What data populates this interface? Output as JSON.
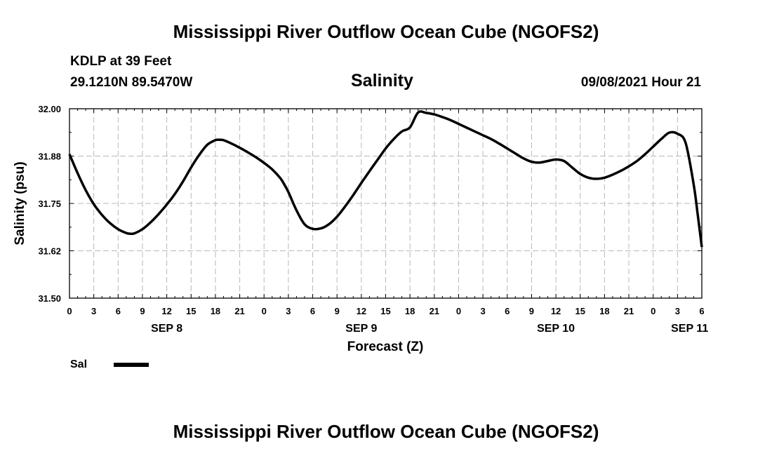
{
  "header": {
    "title": "Mississippi River Outflow Ocean Cube (NGOFS2)",
    "station": "KDLP at 39 Feet",
    "location": "29.1210N  89.5470W",
    "timestamp": "09/08/2021 Hour 21"
  },
  "footer": {
    "title": "Mississippi River Outflow Ocean Cube (NGOFS2)"
  },
  "chart_data": {
    "type": "line",
    "title": "Salinity",
    "xlabel": "Forecast (Z)",
    "ylabel": "Salinity (psu)",
    "ylim": [
      31.5,
      32.0
    ],
    "yticks": [
      "31.50",
      "31.62",
      "31.75",
      "31.88",
      "32.00"
    ],
    "xlim": [
      0,
      78
    ],
    "xticks": [
      "0",
      "3",
      "6",
      "9",
      "12",
      "15",
      "18",
      "21",
      "0",
      "3",
      "6",
      "9",
      "12",
      "15",
      "18",
      "21",
      "0",
      "3",
      "6",
      "9",
      "12",
      "15",
      "18",
      "21",
      "0",
      "3",
      "6"
    ],
    "day_labels": [
      {
        "label": "SEP 8",
        "hour": 12
      },
      {
        "label": "SEP 9",
        "hour": 36
      },
      {
        "label": "SEP 10",
        "hour": 60
      },
      {
        "label": "SEP 11",
        "hour": 76.5
      }
    ],
    "grid": true,
    "series": [
      {
        "name": "Sal",
        "color": "#000000",
        "x": [
          0,
          1,
          2,
          3,
          4,
          5,
          6,
          7,
          7.5,
          8,
          9,
          10,
          11,
          12,
          13,
          14,
          15,
          16,
          17,
          18,
          18.5,
          19,
          20,
          21,
          22,
          23,
          24,
          25,
          26,
          26.5,
          27,
          28,
          29,
          30,
          31,
          32,
          33,
          34,
          35,
          36,
          37,
          38,
          39,
          40,
          41,
          42,
          43,
          44,
          45,
          46,
          47,
          48,
          49,
          50,
          51,
          52,
          53,
          54,
          55,
          56,
          57,
          58,
          59,
          60,
          61,
          62,
          63,
          64,
          65,
          66,
          67,
          68,
          69,
          70,
          71,
          72,
          73,
          74,
          75,
          76,
          77,
          77.5,
          78
        ],
        "values": [
          31.88,
          31.83,
          31.785,
          31.748,
          31.72,
          31.698,
          31.682,
          31.672,
          31.67,
          31.671,
          31.682,
          31.7,
          31.722,
          31.747,
          31.775,
          31.808,
          31.845,
          31.878,
          31.905,
          31.917,
          31.918,
          31.917,
          31.908,
          31.897,
          31.885,
          31.872,
          31.857,
          31.84,
          31.817,
          31.8,
          31.78,
          31.732,
          31.695,
          31.683,
          31.684,
          31.695,
          31.715,
          31.742,
          31.772,
          31.804,
          31.835,
          31.865,
          31.895,
          31.92,
          31.94,
          31.951,
          31.99,
          31.989,
          31.985,
          31.978,
          31.97,
          31.96,
          31.95,
          31.94,
          31.93,
          31.92,
          31.908,
          31.895,
          31.882,
          31.869,
          31.86,
          31.858,
          31.862,
          31.866,
          31.862,
          31.845,
          31.828,
          31.818,
          31.815,
          31.818,
          31.826,
          31.836,
          31.848,
          31.862,
          31.88,
          31.9,
          31.92,
          31.937,
          31.934,
          31.91,
          31.8,
          31.72,
          31.635
        ]
      }
    ],
    "legend": {
      "label": "Sal",
      "placement": "bottom-left"
    }
  }
}
